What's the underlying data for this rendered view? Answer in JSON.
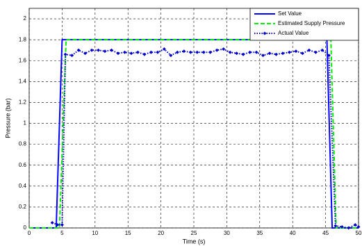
{
  "chart_data": {
    "type": "line",
    "xlabel": "Time (s)",
    "ylabel": "Pressure (bar)",
    "xlim": [
      0,
      50
    ],
    "xticks": [
      0,
      5,
      10,
      15,
      20,
      25,
      30,
      35,
      40,
      45,
      50
    ],
    "ylim": [
      0,
      2.1
    ],
    "yticks": [
      0,
      0.2,
      0.4,
      0.6,
      0.8,
      1,
      1.2,
      1.4,
      1.6,
      1.8,
      2
    ],
    "grid": true,
    "legend": "upper right",
    "series": [
      {
        "name": "Set Value",
        "color": "#0000ff",
        "style": "solid",
        "x": [
          0,
          4.1,
          5,
          45.2,
          46,
          50
        ],
        "values": [
          0,
          0,
          1.8,
          1.8,
          0,
          0
        ]
      },
      {
        "name": "Estimated Supply Pressure",
        "color": "#00ee00",
        "style": "dashed",
        "x": [
          0,
          4.6,
          5.6,
          45.8,
          46.6,
          50
        ],
        "values": [
          0,
          0,
          1.8,
          1.8,
          0,
          0
        ]
      },
      {
        "name": "Actual Value",
        "color": "#0000cc",
        "style": "dotted",
        "marker": "diamond",
        "x": [
          3.5,
          4.3,
          5,
          5.5,
          6.5,
          7.5,
          8.5,
          9.5,
          10.5,
          11.5,
          12.5,
          13.5,
          14.5,
          15.5,
          16.5,
          17.5,
          18.5,
          19.5,
          20.5,
          21.5,
          22.5,
          23.5,
          24.5,
          25.5,
          26.5,
          27.5,
          28.5,
          29.5,
          30.5,
          31.5,
          32.5,
          33.5,
          34.5,
          35.5,
          36.5,
          37.5,
          38.5,
          39.5,
          40.5,
          41.5,
          42.5,
          43.5,
          44.5,
          45.5,
          46.5,
          47.5,
          48.5,
          49.5,
          50
        ],
        "values": [
          0.05,
          0.03,
          0.03,
          1.66,
          1.65,
          1.7,
          1.67,
          1.7,
          1.7,
          1.69,
          1.7,
          1.67,
          1.68,
          1.67,
          1.68,
          1.66,
          1.68,
          1.68,
          1.71,
          1.65,
          1.68,
          1.69,
          1.68,
          1.68,
          1.68,
          1.68,
          1.7,
          1.71,
          1.68,
          1.67,
          1.66,
          1.68,
          1.68,
          1.65,
          1.67,
          1.66,
          1.67,
          1.68,
          1.69,
          1.67,
          1.7,
          1.68,
          1.7,
          1.65,
          0.02,
          0.01,
          0,
          0.03,
          0.01
        ]
      }
    ]
  }
}
